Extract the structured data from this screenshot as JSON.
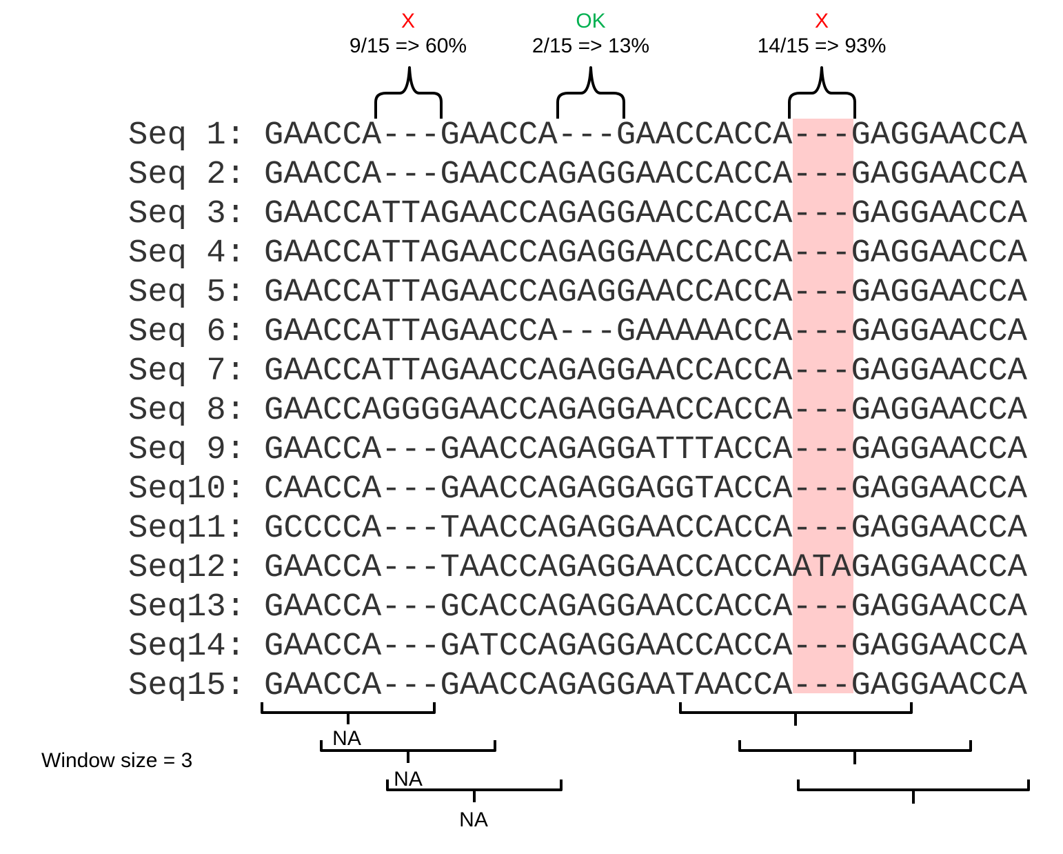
{
  "annotations": [
    {
      "verdict": "X",
      "color": "#ff0000",
      "ratio": "9/15 => 60%"
    },
    {
      "verdict": "OK",
      "color": "#00b050",
      "ratio": "2/15 => 13%"
    },
    {
      "verdict": "X",
      "color": "#ff0000",
      "ratio": "14/15 => 93%"
    }
  ],
  "sequences": [
    {
      "label": "Seq 1:",
      "seq": "GAACCA---GAACCA---GAACCACCA---GAGGAACCA"
    },
    {
      "label": "Seq 2:",
      "seq": "GAACCA---GAACCAGAGGAACCACCA---GAGGAACCA"
    },
    {
      "label": "Seq 3:",
      "seq": "GAACCATTAGAACCAGAGGAACCACCA---GAGGAACCA"
    },
    {
      "label": "Seq 4:",
      "seq": "GAACCATTAGAACCAGAGGAACCACCA---GAGGAACCA"
    },
    {
      "label": "Seq 5:",
      "seq": "GAACCATTAGAACCAGAGGAACCACCA---GAGGAACCA"
    },
    {
      "label": "Seq 6:",
      "seq": "GAACCATTAGAACCA---GAAAAACCA---GAGGAACCA"
    },
    {
      "label": "Seq 7:",
      "seq": "GAACCATTAGAACCAGAGGAACCACCA---GAGGAACCA"
    },
    {
      "label": "Seq 8:",
      "seq": "GAACCAGGGGAACCAGAGGAACCACCA---GAGGAACCA"
    },
    {
      "label": "Seq 9:",
      "seq": "GAACCA---GAACCAGAGGATTTACCA---GAGGAACCA"
    },
    {
      "label": "Seq10:",
      "seq": "CAACCA---GAACCAGAGGAGGTACCA---GAGGAACCA"
    },
    {
      "label": "Seq11:",
      "seq": "GCCCCA---TAACCAGAGGAACCACCA---GAGGAACCA"
    },
    {
      "label": "Seq12:",
      "seq": "GAACCA---TAACCAGAGGAACCACCAATAGAGGAACCA"
    },
    {
      "label": "Seq13:",
      "seq": "GAACCA---GCACCAGAGGAACCACCA---GAGGAACCA"
    },
    {
      "label": "Seq14:",
      "seq": "GAACCA---GATCCAGAGGAACCACCA---GAGGAACCA"
    },
    {
      "label": "Seq15:",
      "seq": "GAACCA---GAACCAGAGGAATAACCA---GAGGAACCA"
    }
  ],
  "window_label": "Window size = 3",
  "na_labels": [
    "NA",
    "NA",
    "NA"
  ]
}
